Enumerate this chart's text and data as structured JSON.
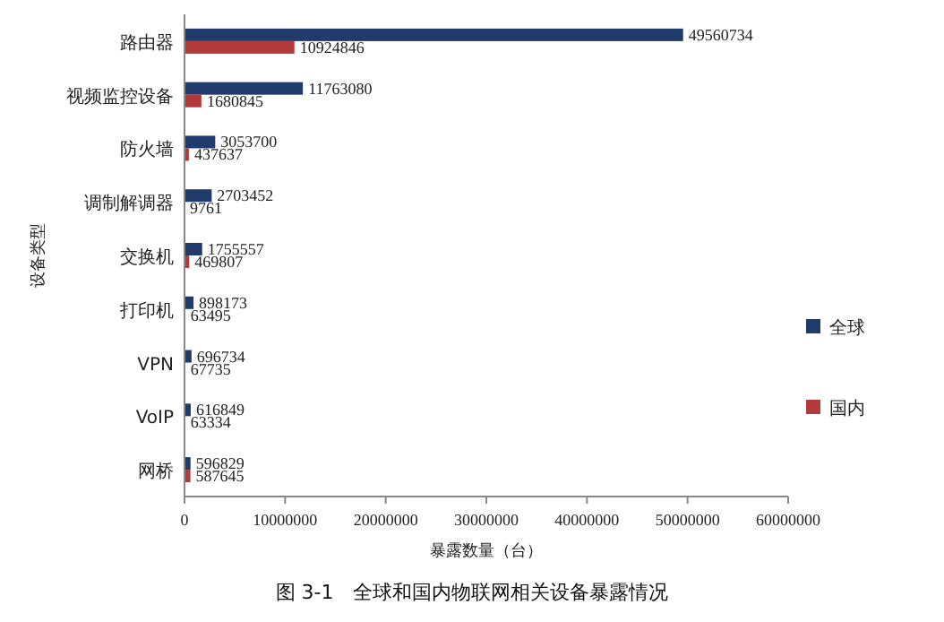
{
  "chart_data": {
    "type": "bar",
    "orientation": "horizontal",
    "title": "图 3-1　全球和国内物联网相关设备暴露情况",
    "xlabel": "暴露数量（台）",
    "ylabel": "设备类型",
    "categories": [
      "路由器",
      "视频监控设备",
      "防火墙",
      "调制解调器",
      "交换机",
      "打印机",
      "VPN",
      "VoIP",
      "网桥"
    ],
    "series": [
      {
        "name": "全球",
        "color": "#1f3a6b",
        "values": [
          49560734,
          11763080,
          3053700,
          2703452,
          1755557,
          898173,
          696734,
          616849,
          596829
        ]
      },
      {
        "name": "国内",
        "color": "#b23a3a",
        "values": [
          10924846,
          1680845,
          437637,
          9761,
          469807,
          63495,
          67735,
          63334,
          587645
        ]
      }
    ],
    "xlim": [
      0,
      60000000
    ],
    "xticks": [
      0,
      10000000,
      20000000,
      30000000,
      40000000,
      50000000,
      60000000
    ],
    "data_labels": true,
    "legend": "right",
    "grid": false
  }
}
